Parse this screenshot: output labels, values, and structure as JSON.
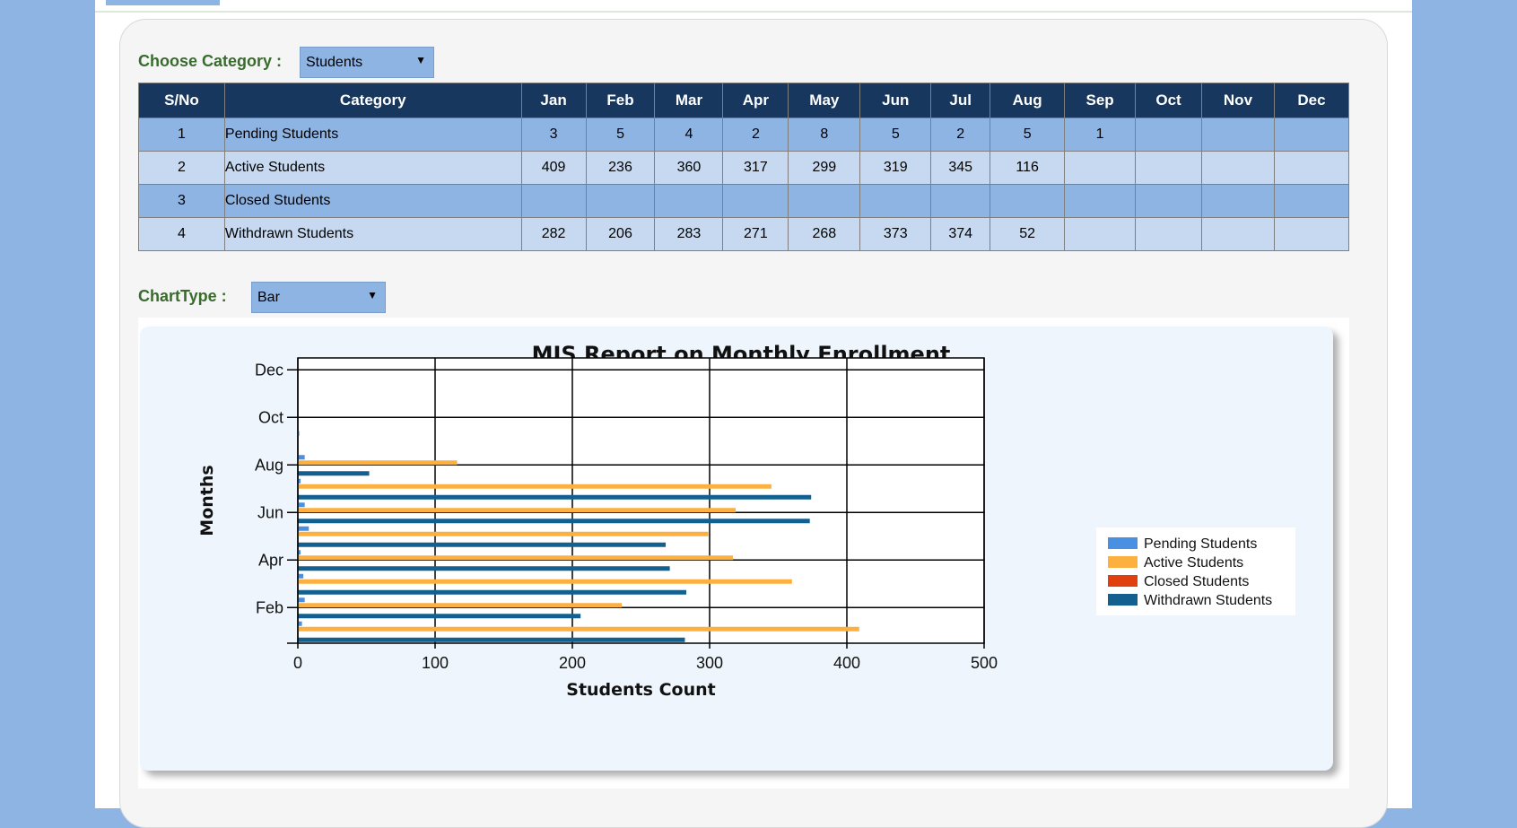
{
  "category_filter": {
    "label": "Choose Category :",
    "selected": "Students"
  },
  "table": {
    "headers": [
      "S/No",
      "Category",
      "Jan",
      "Feb",
      "Mar",
      "Apr",
      "May",
      "Jun",
      "Jul",
      "Aug",
      "Sep",
      "Oct",
      "Nov",
      "Dec"
    ],
    "rows": [
      [
        "1",
        "Pending Students",
        "3",
        "5",
        "4",
        "2",
        "8",
        "5",
        "2",
        "5",
        "1",
        "",
        "",
        ""
      ],
      [
        "2",
        "Active Students",
        "409",
        "236",
        "360",
        "317",
        "299",
        "319",
        "345",
        "116",
        "",
        "",
        "",
        ""
      ],
      [
        "3",
        "Closed Students",
        "",
        "",
        "",
        "",
        "",
        "",
        "",
        "",
        "",
        "",
        "",
        ""
      ],
      [
        "4",
        "Withdrawn Students",
        "282",
        "206",
        "283",
        "271",
        "268",
        "373",
        "374",
        "52",
        "",
        "",
        "",
        ""
      ]
    ]
  },
  "chart_type_filter": {
    "label": "ChartType  :",
    "selected": "Bar"
  },
  "colors": {
    "pending": "#4a90e2",
    "active": "#fbb040",
    "closed": "#e0400e",
    "withdrawn": "#11608f",
    "header_bg": "#17375e",
    "row_dark": "#8eb4e3",
    "row_light": "#c6d9f1",
    "label_green": "#3a6b2e"
  },
  "chart_data": {
    "type": "bar",
    "orientation": "horizontal",
    "title": "MIS Report on Monthly Enrollment",
    "xlabel": "Students Count",
    "ylabel": "Months",
    "xlim": [
      0,
      500
    ],
    "xticks": [
      "0",
      "100",
      "200",
      "300",
      "400",
      "500"
    ],
    "yticks": [
      "Feb",
      "Apr",
      "Jun",
      "Aug",
      "Oct",
      "Dec"
    ],
    "grid": true,
    "legend_position": "right",
    "categories": [
      "Jan",
      "Feb",
      "Mar",
      "Apr",
      "May",
      "Jun",
      "Jul",
      "Aug",
      "Sep",
      "Oct",
      "Nov",
      "Dec"
    ],
    "series": [
      {
        "name": "Pending Students",
        "color": "#4a90e2",
        "values": [
          3,
          5,
          4,
          2,
          8,
          5,
          2,
          5,
          1,
          0,
          0,
          0
        ]
      },
      {
        "name": "Active Students",
        "color": "#fbb040",
        "values": [
          409,
          236,
          360,
          317,
          299,
          319,
          345,
          116,
          0,
          0,
          0,
          0
        ]
      },
      {
        "name": "Closed Students",
        "color": "#e0400e",
        "values": [
          0,
          0,
          0,
          0,
          0,
          0,
          0,
          0,
          0,
          0,
          0,
          0
        ]
      },
      {
        "name": "Withdrawn Students",
        "color": "#11608f",
        "values": [
          282,
          206,
          283,
          271,
          268,
          373,
          374,
          52,
          0,
          0,
          0,
          0
        ]
      }
    ]
  }
}
